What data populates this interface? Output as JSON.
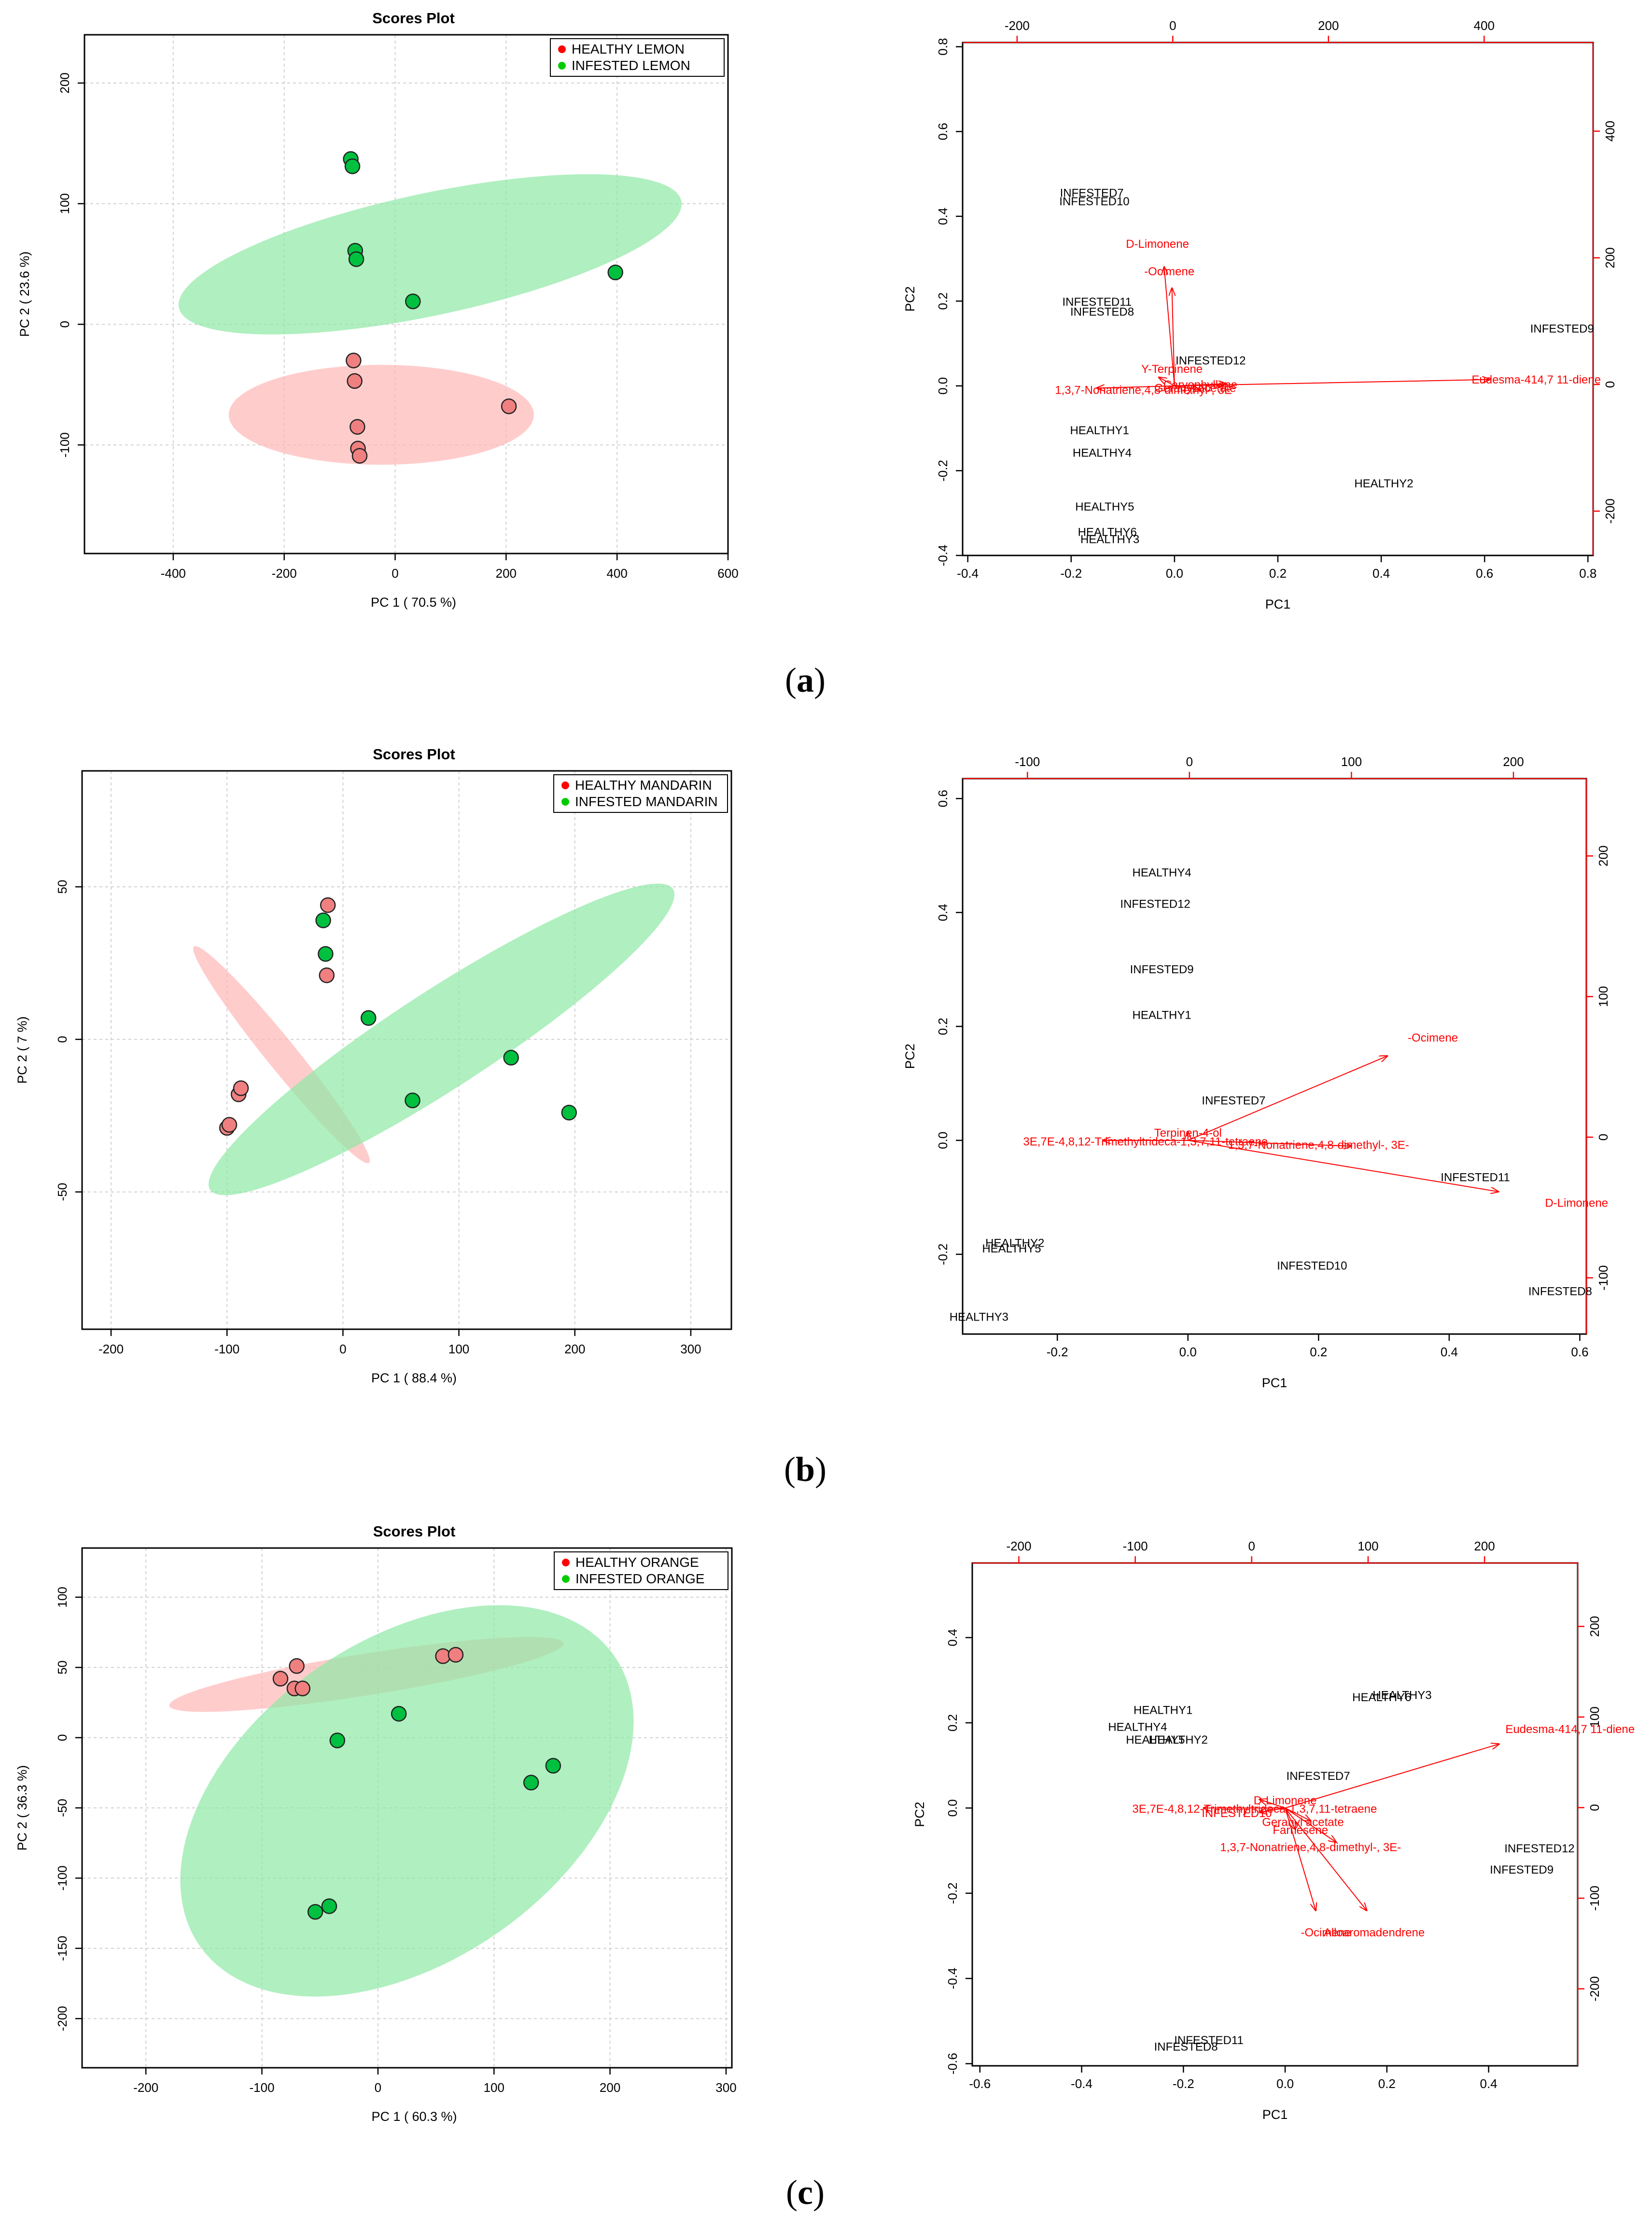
{
  "panel_labels": [
    {
      "open": "(",
      "letter": "a",
      "close": ")"
    },
    {
      "open": "(",
      "letter": "b",
      "close": ")"
    },
    {
      "open": "(",
      "letter": "c",
      "close": ")"
    }
  ],
  "colors": {
    "healthy_point": "#f08080",
    "healthy_ellipse": "#ffb6b6",
    "infested_point": "#00c040",
    "infested_ellipse": "#8fe8a5",
    "legend_red": "#ff0000",
    "legend_green": "#00cc00",
    "arrow": "#ff0000",
    "grid": "#d0d0d0"
  },
  "chart_data": [
    {
      "type": "scatter",
      "id": "scores-lemon",
      "title": "Scores Plot",
      "xlabel": "PC 1 ( 70.5 %)",
      "ylabel": "PC 2 ( 23.6 %)",
      "xlim": [
        -560,
        600
      ],
      "ylim": [
        -190,
        240
      ],
      "xticks": [
        -400,
        -200,
        0,
        200,
        400,
        600
      ],
      "yticks": [
        -100,
        0,
        100,
        200
      ],
      "xtick_labels": [
        "-400",
        "-200",
        "0",
        "200",
        "400",
        "600"
      ],
      "ytick_labels": [
        "-100",
        "0",
        "100",
        "200"
      ],
      "grid": true,
      "legend_position": "top-right",
      "series": [
        {
          "name": "HEALTHY LEMON",
          "group": "healthy",
          "points": [
            [
              -75,
              -30
            ],
            [
              -73,
              -47
            ],
            [
              -68,
              -85
            ],
            [
              -67,
              -103
            ],
            [
              -64,
              -109
            ],
            [
              205,
              -68
            ]
          ],
          "ellipse": {
            "cx": -25,
            "cy": -75,
            "rx": 275,
            "ry": 90,
            "angle": 0
          }
        },
        {
          "name": "INFESTED LEMON",
          "group": "infested",
          "points": [
            [
              -80,
              137
            ],
            [
              -77,
              131
            ],
            [
              -72,
              61
            ],
            [
              -70,
              54
            ],
            [
              32,
              19
            ],
            [
              397,
              43
            ]
          ],
          "ellipse": {
            "cx": 63,
            "cy": 58,
            "rx": 463,
            "ry": 110,
            "angle": -12
          }
        }
      ]
    },
    {
      "type": "biplot",
      "id": "biplot-lemon",
      "xlabel": "PC1",
      "ylabel": "PC2",
      "xlim": [
        -0.41,
        0.81
      ],
      "ylim": [
        -0.4,
        0.81
      ],
      "xticks": [
        -0.4,
        -0.2,
        0.0,
        0.2,
        0.4,
        0.6,
        0.8
      ],
      "yticks": [
        -0.4,
        -0.2,
        0.0,
        0.2,
        0.4,
        0.6,
        0.8
      ],
      "xtick_labels": [
        "-0.4",
        "-0.2",
        "0.0",
        "0.2",
        "0.4",
        "0.6",
        "0.8"
      ],
      "ytick_labels": [
        "-0.4",
        "-0.2",
        "0.0",
        "0.2",
        "0.4",
        "0.6",
        "0.8"
      ],
      "top_lim": [
        -270,
        540
      ],
      "top_ticks": [
        -200,
        0,
        200,
        400
      ],
      "top_tick_labels": [
        "-200",
        "0",
        "200",
        "400"
      ],
      "right_lim": [
        -270,
        540
      ],
      "right_ticks": [
        -200,
        0,
        200,
        400
      ],
      "right_tick_labels": [
        "-200",
        "0",
        "200",
        "400"
      ],
      "observations": [
        {
          "label": "INFESTED7",
          "x": -0.16,
          "y": 0.455
        },
        {
          "label": "INFESTED10",
          "x": -0.155,
          "y": 0.435
        },
        {
          "label": "INFESTED11",
          "x": -0.15,
          "y": 0.198
        },
        {
          "label": "INFESTED8",
          "x": -0.14,
          "y": 0.175
        },
        {
          "label": "INFESTED12",
          "x": 0.07,
          "y": 0.06
        },
        {
          "label": "INFESTED9",
          "x": 0.75,
          "y": 0.135
        },
        {
          "label": "HEALTHY1",
          "x": -0.145,
          "y": -0.105
        },
        {
          "label": "HEALTHY4",
          "x": -0.14,
          "y": -0.158
        },
        {
          "label": "HEALTHY2",
          "x": 0.405,
          "y": -0.23
        },
        {
          "label": "HEALTHY5",
          "x": -0.135,
          "y": -0.285
        },
        {
          "label": "HEALTHY6",
          "x": -0.13,
          "y": -0.345
        },
        {
          "label": "HEALTHY3",
          "x": -0.125,
          "y": -0.362
        }
      ],
      "variables": [
        {
          "label": "D-Limonene",
          "x": -0.02,
          "y": 0.28,
          "label_x": -0.033,
          "label_y": 0.335
        },
        {
          "label": "-Ocimene",
          "x": -0.005,
          "y": 0.23,
          "label_x": -0.01,
          "label_y": 0.27
        },
        {
          "label": "Eudesma-414,7 11-diene",
          "x": 0.61,
          "y": 0.015,
          "label_x": 0.7,
          "label_y": 0.015
        },
        {
          "label": "Y-Terpinene",
          "x": -0.03,
          "y": 0.02,
          "label_x": -0.005,
          "label_y": 0.04
        },
        {
          "label": "1,3,7-Nonatriene,4,8-dimethyl-, 3E",
          "x": -0.15,
          "y": -0.005,
          "label_x": -0.06,
          "label_y": -0.01
        },
        {
          "label": "Caryophyllene",
          "x": 0.1,
          "y": 0.005,
          "label_x": 0.05,
          "label_y": 0.003
        },
        {
          "label": "Geranyl acetate",
          "x": 0.05,
          "y": -0.01,
          "label_x": 0.04,
          "label_y": -0.005
        }
      ]
    },
    {
      "type": "scatter",
      "id": "scores-mandarin",
      "title": "Scores Plot",
      "xlabel": "PC 1 ( 88.4 %)",
      "ylabel": "PC 2 ( 7 %)",
      "xlim": [
        -225,
        335
      ],
      "ylim": [
        -95,
        88
      ],
      "xticks": [
        -200,
        -100,
        0,
        100,
        200,
        300
      ],
      "yticks": [
        -50,
        0,
        50
      ],
      "xtick_labels": [
        "-200",
        "-100",
        "0",
        "100",
        "200",
        "300"
      ],
      "ytick_labels": [
        "-50",
        "0",
        "50"
      ],
      "grid": true,
      "legend_position": "top-right",
      "series": [
        {
          "name": "HEALTHY MANDARIN",
          "group": "healthy",
          "points": [
            [
              -100,
              -29
            ],
            [
              -98,
              -28
            ],
            [
              -90,
              -18
            ],
            [
              -88,
              -16
            ],
            [
              -14,
              21
            ],
            [
              -13,
              44
            ]
          ],
          "ellipse": {
            "cx": -53,
            "cy": -5,
            "rx": 120,
            "ry": 13,
            "angle": 51
          }
        },
        {
          "name": "INFESTED MANDARIN",
          "group": "infested",
          "points": [
            [
              -17,
              39
            ],
            [
              -15,
              28
            ],
            [
              22,
              7
            ],
            [
              60,
              -20
            ],
            [
              145,
              -6
            ],
            [
              195,
              -24
            ]
          ],
          "ellipse": {
            "cx": 85,
            "cy": 0,
            "rx": 238,
            "ry": 42,
            "angle": -33
          }
        }
      ]
    },
    {
      "type": "biplot",
      "id": "biplot-mandarin",
      "xlabel": "PC1",
      "ylabel": "PC2",
      "xlim": [
        -0.345,
        0.61
      ],
      "ylim": [
        -0.34,
        0.635
      ],
      "xticks": [
        -0.2,
        0.0,
        0.2,
        0.4,
        0.6
      ],
      "yticks": [
        -0.2,
        0.0,
        0.2,
        0.4,
        0.6
      ],
      "xtick_labels": [
        "-0.2",
        "0.0",
        "0.2",
        "0.4",
        "0.6"
      ],
      "ytick_labels": [
        "-0.2",
        "0.0",
        "0.2",
        "0.4",
        "0.6"
      ],
      "top_lim": [
        -140,
        245
      ],
      "top_ticks": [
        -100,
        0,
        100,
        200
      ],
      "top_tick_labels": [
        "-100",
        "0",
        "100",
        "200"
      ],
      "right_lim": [
        -140,
        255
      ],
      "right_ticks": [
        -100,
        0,
        100,
        200
      ],
      "right_tick_labels": [
        "-100",
        "0",
        "100",
        "200"
      ],
      "observations": [
        {
          "label": "HEALTHY4",
          "x": -0.04,
          "y": 0.47
        },
        {
          "label": "INFESTED12",
          "x": -0.05,
          "y": 0.415
        },
        {
          "label": "INFESTED9",
          "x": -0.04,
          "y": 0.3
        },
        {
          "label": "HEALTHY1",
          "x": -0.04,
          "y": 0.22
        },
        {
          "label": "INFESTED7",
          "x": 0.07,
          "y": 0.07
        },
        {
          "label": "INFESTED11",
          "x": 0.44,
          "y": -0.065
        },
        {
          "label": "HEALTHY2",
          "x": -0.265,
          "y": -0.18
        },
        {
          "label": "HEALTHY5",
          "x": -0.27,
          "y": -0.19
        },
        {
          "label": "INFESTED10",
          "x": 0.19,
          "y": -0.22
        },
        {
          "label": "INFESTED8",
          "x": 0.57,
          "y": -0.265
        },
        {
          "label": "HEALTHY3",
          "x": -0.32,
          "y": -0.31
        }
      ],
      "variables": [
        {
          "label": "-Ocimene",
          "x": 0.305,
          "y": 0.148,
          "label_x": 0.375,
          "label_y": 0.18
        },
        {
          "label": "D-Limonene",
          "x": 0.475,
          "y": -0.09,
          "label_x": 0.595,
          "label_y": -0.11
        },
        {
          "label": "3E,7E-4,8,12-Trimethyltrideca-1,3,7,11-tetraene",
          "x": -0.13,
          "y": 0.0,
          "label_x": -0.065,
          "label_y": -0.002
        },
        {
          "label": "Terpinen-4-ol",
          "x": 0.0,
          "y": 0.015,
          "label_x": 0.0,
          "label_y": 0.013
        },
        {
          "label": "1,3,7-Nonatriene,4,8-dimethyl-, 3E-",
          "x": 0.25,
          "y": -0.01,
          "label_x": 0.2,
          "label_y": -0.008
        }
      ]
    },
    {
      "type": "scatter",
      "id": "scores-orange",
      "title": "Scores Plot",
      "xlabel": "PC 1 ( 60.3 %)",
      "ylabel": "PC 2 ( 36.3 %)",
      "xlim": [
        -255,
        305
      ],
      "ylim": [
        -235,
        135
      ],
      "xticks": [
        -200,
        -100,
        0,
        100,
        200,
        300
      ],
      "yticks": [
        -200,
        -150,
        -100,
        -50,
        0,
        50,
        100
      ],
      "xtick_labels": [
        "-200",
        "-100",
        "0",
        "100",
        "200",
        "300"
      ],
      "ytick_labels": [
        "-200",
        "-150",
        "-100",
        "-50",
        "0",
        "50",
        "100"
      ],
      "grid": true,
      "legend_position": "top-right",
      "series": [
        {
          "name": "HEALTHY ORANGE",
          "group": "healthy",
          "points": [
            [
              -84,
              42
            ],
            [
              -70,
              51
            ],
            [
              -72,
              35
            ],
            [
              -65,
              35
            ],
            [
              56,
              58
            ],
            [
              67,
              59
            ]
          ],
          "ellipse": {
            "cx": -10,
            "cy": 45,
            "rx": 172,
            "ry": 18,
            "angle": -9
          }
        },
        {
          "name": "INFESTED ORANGE",
          "group": "infested",
          "points": [
            [
              -35,
              -2
            ],
            [
              18,
              17
            ],
            [
              132,
              -32
            ],
            [
              151,
              -20
            ],
            [
              -42,
              -120
            ],
            [
              -54,
              -124
            ]
          ],
          "ellipse": {
            "cx": 25,
            "cy": -45,
            "rx": 218,
            "ry": 138,
            "angle": -35
          }
        }
      ]
    },
    {
      "type": "biplot",
      "id": "biplot-orange",
      "xlabel": "PC1",
      "ylabel": "PC2",
      "xlim": [
        -0.615,
        0.575
      ],
      "ylim": [
        -0.605,
        0.575
      ],
      "xticks": [
        -0.6,
        -0.4,
        -0.2,
        0.0,
        0.2,
        0.4
      ],
      "yticks": [
        -0.6,
        -0.4,
        -0.2,
        0.0,
        0.2,
        0.4
      ],
      "xtick_labels": [
        "-0.6",
        "-0.4",
        "-0.2",
        "0.0",
        "0.2",
        "0.4"
      ],
      "ytick_labels": [
        "-0.6",
        "-0.4",
        "-0.2",
        "0.0",
        "0.2",
        "0.4"
      ],
      "top_lim": [
        -240,
        280
      ],
      "top_ticks": [
        -200,
        -100,
        0,
        100,
        200
      ],
      "top_tick_labels": [
        "-200",
        "-100",
        "0",
        "100",
        "200"
      ],
      "right_lim": [
        -285,
        270
      ],
      "right_ticks": [
        -200,
        -100,
        0,
        100,
        200
      ],
      "right_tick_labels": [
        "-200",
        "-100",
        "0",
        "100",
        "200"
      ],
      "observations": [
        {
          "label": "HEALTHY1",
          "x": -0.24,
          "y": 0.23
        },
        {
          "label": "HEALTHY4",
          "x": -0.29,
          "y": 0.19
        },
        {
          "label": "HEALTHY5",
          "x": -0.255,
          "y": 0.16
        },
        {
          "label": "HEALTHY2",
          "x": -0.21,
          "y": 0.16
        },
        {
          "label": "HEALTHY6",
          "x": 0.19,
          "y": 0.26
        },
        {
          "label": "HEALTHY3",
          "x": 0.23,
          "y": 0.265
        },
        {
          "label": "INFESTED7",
          "x": 0.065,
          "y": 0.075
        },
        {
          "label": "INFESTED12",
          "x": 0.5,
          "y": -0.095
        },
        {
          "label": "INFESTED9",
          "x": 0.465,
          "y": -0.145
        },
        {
          "label": "INFESTED11",
          "x": -0.15,
          "y": -0.545
        },
        {
          "label": "INFESTED8",
          "x": -0.195,
          "y": -0.56
        }
      ],
      "variables": [
        {
          "label": "Eudesma-414,7 11-diene",
          "x": 0.42,
          "y": 0.15,
          "label_x": 0.56,
          "label_y": 0.185
        },
        {
          "label": "-Ocimene",
          "x": 0.06,
          "y": -0.24,
          "label_x": 0.08,
          "label_y": -0.292
        },
        {
          "label": "Alloaromadendrene",
          "x": 0.16,
          "y": -0.24,
          "label_x": 0.175,
          "label_y": -0.292
        },
        {
          "label": "1,3,7-Nonatriene,4,8-dimethyl-, 3E-",
          "x": 0.1,
          "y": -0.08,
          "label_x": 0.05,
          "label_y": -0.092
        },
        {
          "label": "3E,7E-4,8,12-Trimethyltrideca-1,3,7,11-tetraene",
          "x": -0.16,
          "y": 0.0,
          "label_x": -0.06,
          "label_y": -0.002
        },
        {
          "label": "D-Limonene",
          "x": -0.05,
          "y": 0.02,
          "label_x": 0.0,
          "label_y": 0.018
        },
        {
          "label": "Geranyl acetate",
          "x": 0.05,
          "y": -0.03,
          "label_x": 0.035,
          "label_y": -0.033
        },
        {
          "label": "Farnesene",
          "x": 0.02,
          "y": -0.05,
          "label_x": 0.03,
          "label_y": -0.052
        },
        {
          "label": "INFESTED10",
          "x": -0.05,
          "y": -0.01,
          "label_x": -0.095,
          "label_y": -0.012
        }
      ]
    }
  ]
}
